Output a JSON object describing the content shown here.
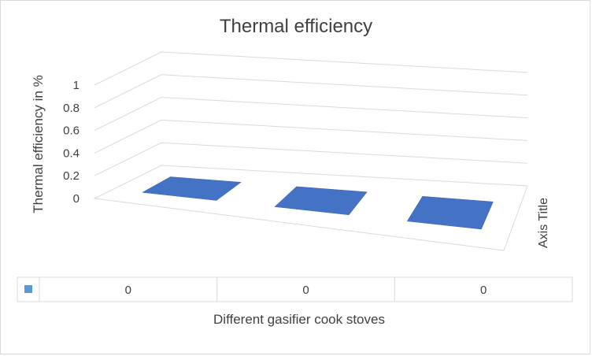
{
  "chart_data": {
    "type": "bar",
    "title": "Thermal efficiency",
    "xlabel": "Different gasifier cook stoves",
    "ylabel": "Thermal efficiency in %",
    "zlabel": "Axis Title",
    "categories": [
      "",
      "",
      ""
    ],
    "series": [
      {
        "values": [
          0,
          0,
          0
        ]
      }
    ],
    "ylim": [
      0,
      1
    ],
    "yticks": [
      "0",
      "0.2",
      "0.4",
      "0.6",
      "0.8",
      "1"
    ],
    "data_table": [
      "0",
      "0",
      "0"
    ],
    "grid": true,
    "legend": "none",
    "colors": {
      "bar": "#4472c4",
      "grid": "#d9d9d9",
      "text": "#404040"
    }
  }
}
